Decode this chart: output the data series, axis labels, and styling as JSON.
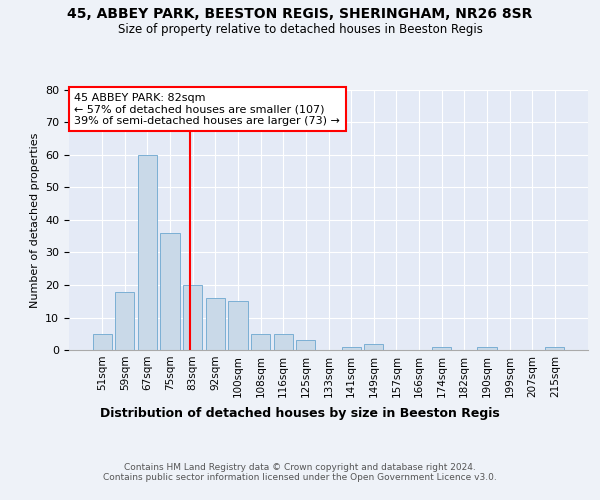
{
  "title1": "45, ABBEY PARK, BEESTON REGIS, SHERINGHAM, NR26 8SR",
  "title2": "Size of property relative to detached houses in Beeston Regis",
  "xlabel": "Distribution of detached houses by size in Beeston Regis",
  "ylabel": "Number of detached properties",
  "footnote": "Contains HM Land Registry data © Crown copyright and database right 2024.\nContains public sector information licensed under the Open Government Licence v3.0.",
  "bar_labels": [
    "51sqm",
    "59sqm",
    "67sqm",
    "75sqm",
    "83sqm",
    "92sqm",
    "100sqm",
    "108sqm",
    "116sqm",
    "125sqm",
    "133sqm",
    "141sqm",
    "149sqm",
    "157sqm",
    "166sqm",
    "174sqm",
    "182sqm",
    "190sqm",
    "199sqm",
    "207sqm",
    "215sqm"
  ],
  "bar_values": [
    5,
    18,
    60,
    36,
    20,
    16,
    15,
    5,
    5,
    3,
    0,
    1,
    2,
    0,
    0,
    1,
    0,
    1,
    0,
    0,
    1
  ],
  "bar_color": "#c9d9e8",
  "bar_edge_color": "#7bafd4",
  "ylim": [
    0,
    80
  ],
  "yticks": [
    0,
    10,
    20,
    30,
    40,
    50,
    60,
    70,
    80
  ],
  "vline_x_index": 3.88,
  "annotation_text": "45 ABBEY PARK: 82sqm\n← 57% of detached houses are smaller (107)\n39% of semi-detached houses are larger (73) →",
  "annotation_box_color": "white",
  "annotation_box_edge_color": "red",
  "vline_color": "red",
  "background_color": "#eef2f8",
  "plot_background": "#e4eaf6"
}
